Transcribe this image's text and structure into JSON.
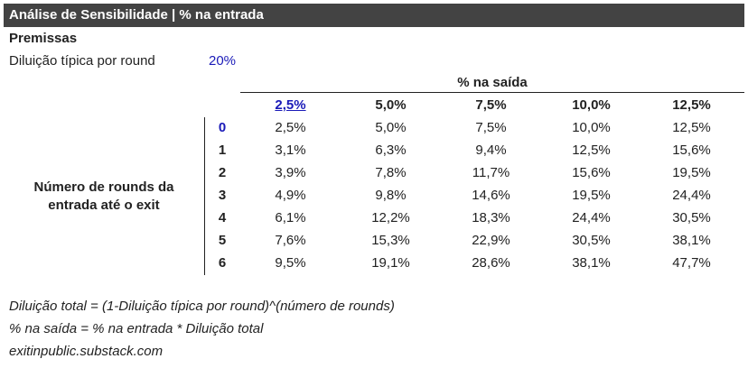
{
  "header": {
    "title": "Análise de Sensibilidade | % na entrada"
  },
  "premissas": {
    "title": "Premissas",
    "dilution_label": "Diluição típica por round",
    "dilution_value": "20%"
  },
  "table": {
    "column_group_title": "% na saída",
    "row_group_title_line1": "Número de rounds da",
    "row_group_title_line2": "entrada até o exit",
    "columns": [
      "2,5%",
      "5,0%",
      "7,5%",
      "10,0%",
      "12,5%"
    ],
    "rows": [
      "0",
      "1",
      "2",
      "3",
      "4",
      "5",
      "6"
    ],
    "values": [
      [
        "2,5%",
        "5,0%",
        "7,5%",
        "10,0%",
        "12,5%"
      ],
      [
        "3,1%",
        "6,3%",
        "9,4%",
        "12,5%",
        "15,6%"
      ],
      [
        "3,9%",
        "7,8%",
        "11,7%",
        "15,6%",
        "19,5%"
      ],
      [
        "4,9%",
        "9,8%",
        "14,6%",
        "19,5%",
        "24,4%"
      ],
      [
        "6,1%",
        "12,2%",
        "18,3%",
        "24,4%",
        "30,5%"
      ],
      [
        "7,6%",
        "15,3%",
        "22,9%",
        "30,5%",
        "38,1%"
      ],
      [
        "9,5%",
        "19,1%",
        "28,6%",
        "38,1%",
        "47,7%"
      ]
    ]
  },
  "notes": {
    "formula1": "Diluição total = (1-Diluição típica por round)^(número de rounds)",
    "formula2": "% na saída = % na entrada * Diluição total",
    "source": "exitinpublic.substack.com"
  },
  "colors": {
    "header_bg": "#434343",
    "accent_blue": "#1a1ab8"
  }
}
